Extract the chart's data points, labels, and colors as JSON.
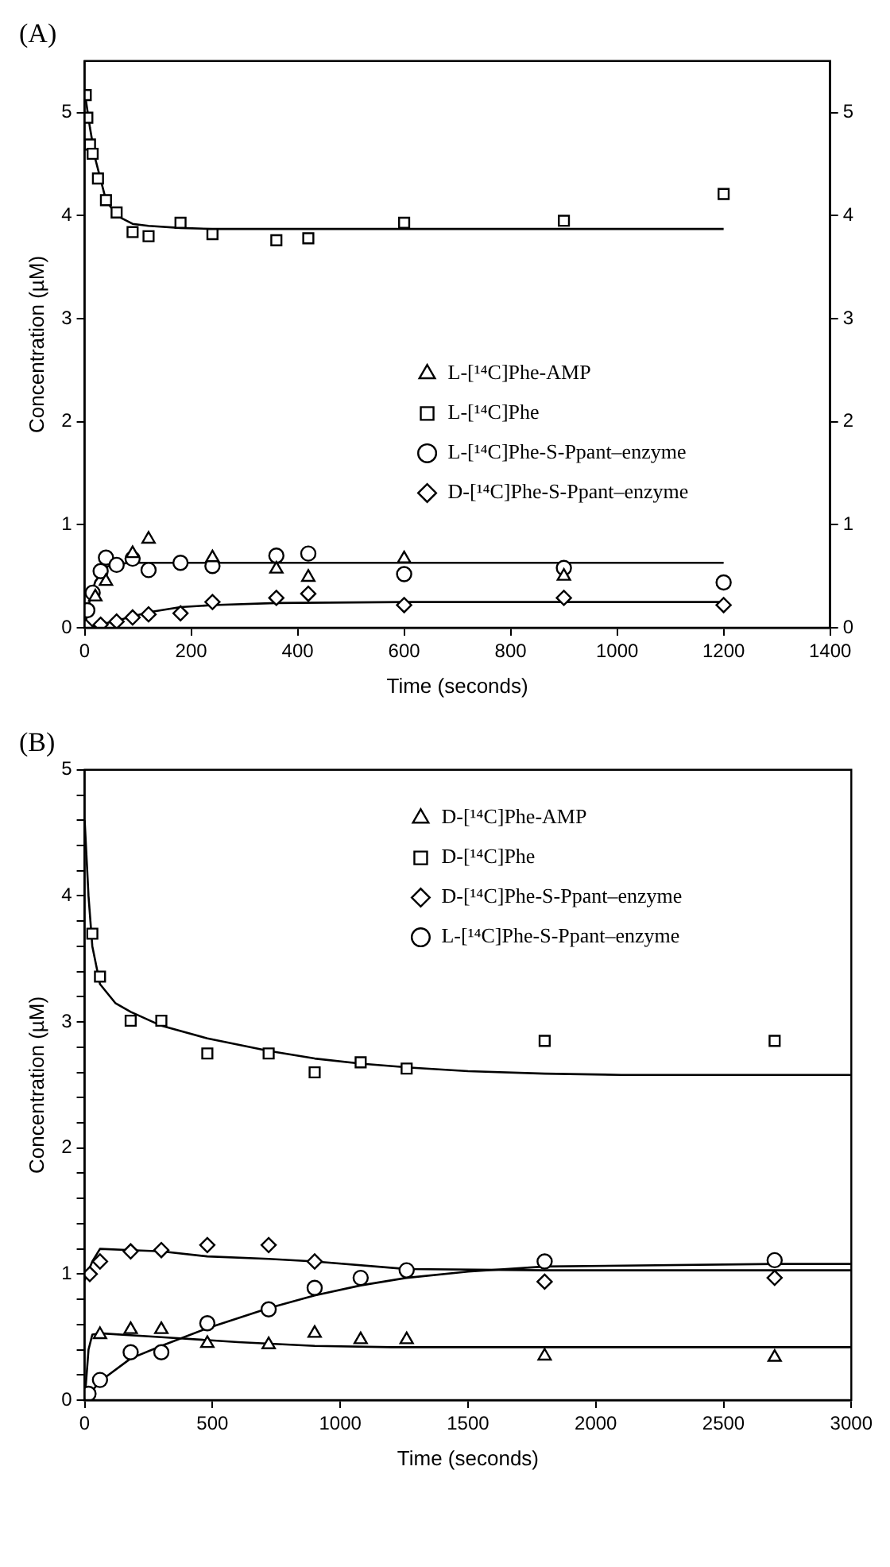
{
  "chart_data": [
    {
      "type": "scatter",
      "title": "(A)",
      "xlabel": "Time (seconds)",
      "ylabel": "Concentration (µM)",
      "xlim": [
        0,
        1400
      ],
      "xticks": [
        0,
        200,
        400,
        600,
        800,
        1000,
        1200,
        1400
      ],
      "ylim": [
        0,
        5.5
      ],
      "yticks": [
        0,
        1,
        2,
        3,
        4,
        5
      ],
      "y2lim": [
        0,
        5.5
      ],
      "y2ticks": [
        0,
        1,
        2,
        3,
        4,
        5
      ],
      "grid": false,
      "legend": "center right",
      "series": [
        {
          "name": "L-[¹⁴C]Phe-AMP",
          "color": "#000000",
          "marker": "triangle",
          "x": [
            20,
            40,
            90,
            120,
            240,
            360,
            420,
            600,
            900
          ],
          "values": [
            0.3,
            0.45,
            0.72,
            0.86,
            0.68,
            0.57,
            0.49,
            0.67,
            0.5
          ]
        },
        {
          "name": "L-[¹⁴C]Phe",
          "color": "#000000",
          "marker": "square",
          "x": [
            2,
            5,
            10,
            15,
            25,
            40,
            60,
            90,
            120,
            180,
            240,
            360,
            420,
            600,
            900,
            1200
          ],
          "values": [
            5.17,
            4.95,
            4.69,
            4.6,
            4.36,
            4.15,
            4.03,
            3.84,
            3.8,
            3.93,
            3.82,
            3.76,
            3.78,
            3.93,
            3.95,
            4.21
          ]
        },
        {
          "name": "L-[¹⁴C]Phe-S-Ppant–enzyme",
          "color": "#000000",
          "marker": "circle",
          "x": [
            5,
            15,
            30,
            40,
            60,
            90,
            120,
            180,
            240,
            360,
            420,
            600,
            900,
            1200
          ],
          "values": [
            0.17,
            0.34,
            0.55,
            0.68,
            0.61,
            0.67,
            0.56,
            0.63,
            0.6,
            0.7,
            0.72,
            0.52,
            0.58,
            0.44
          ]
        },
        {
          "name": "D-[¹⁴C]Phe-S-Ppant–enzyme",
          "color": "#000000",
          "marker": "diamond",
          "x": [
            2,
            30,
            60,
            90,
            120,
            180,
            240,
            360,
            420,
            600,
            900,
            1200
          ],
          "values": [
            0.01,
            0.03,
            0.06,
            0.1,
            0.13,
            0.14,
            0.25,
            0.29,
            0.33,
            0.22,
            0.29,
            0.22
          ]
        },
        {
          "type": "line",
          "color": "#000000",
          "marker": "none",
          "x": [
            0,
            10,
            20,
            40,
            60,
            90,
            120,
            180,
            240,
            360,
            600,
            900,
            1200
          ],
          "values": [
            5.2,
            4.85,
            4.55,
            4.15,
            4.0,
            3.92,
            3.9,
            3.88,
            3.87,
            3.87,
            3.87,
            3.87,
            3.87
          ]
        },
        {
          "type": "line",
          "color": "#000000",
          "marker": "none",
          "x": [
            0,
            10,
            20,
            40,
            60,
            90,
            120,
            240,
            600,
            1200
          ],
          "values": [
            0,
            0.28,
            0.45,
            0.59,
            0.62,
            0.63,
            0.63,
            0.63,
            0.63,
            0.63
          ]
        },
        {
          "type": "line",
          "color": "#000000",
          "marker": "none",
          "x": [
            0,
            30,
            60,
            90,
            120,
            180,
            240,
            360,
            600,
            1200
          ],
          "values": [
            0,
            0.03,
            0.07,
            0.11,
            0.15,
            0.2,
            0.22,
            0.24,
            0.25,
            0.25
          ]
        }
      ]
    },
    {
      "type": "scatter",
      "title": "(B)",
      "xlabel": "Time (seconds)",
      "ylabel": "Concentration (µM)",
      "xlim": [
        0,
        3000
      ],
      "xticks": [
        0,
        500,
        1000,
        1500,
        2000,
        2500,
        3000
      ],
      "ylim": [
        0,
        5
      ],
      "yticks": [
        0,
        {
          "value": 0.2,
          "label": null
        },
        {
          "value": 0.4,
          "label": null
        },
        {
          "value": 0.6,
          "label": null
        },
        {
          "value": 0.8,
          "label": null
        },
        1,
        {
          "value": 1.2,
          "label": null
        },
        {
          "value": 1.4,
          "label": null
        },
        {
          "value": 1.6,
          "label": null
        },
        {
          "value": 1.8,
          "label": null
        },
        2,
        {
          "value": 2.2,
          "label": null
        },
        {
          "value": 2.4,
          "label": null
        },
        {
          "value": 2.6,
          "label": null
        },
        {
          "value": 2.8,
          "label": null
        },
        3,
        {
          "value": 3.2,
          "label": null
        },
        {
          "value": 3.4,
          "label": null
        },
        {
          "value": 3.6,
          "label": null
        },
        {
          "value": 3.8,
          "label": null
        },
        4,
        {
          "value": 4.2,
          "label": null
        },
        {
          "value": 4.4,
          "label": null
        },
        {
          "value": 4.6,
          "label": null
        },
        {
          "value": 4.8,
          "label": null
        },
        5
      ],
      "grid": false,
      "legend": "top right",
      "series": [
        {
          "name": "D-[¹⁴C]Phe-AMP",
          "color": "#000000",
          "marker": "triangle",
          "x": [
            60,
            180,
            300,
            480,
            720,
            900,
            1080,
            1260,
            1800,
            2700
          ],
          "values": [
            0.52,
            0.56,
            0.56,
            0.45,
            0.44,
            0.53,
            0.48,
            0.48,
            0.35,
            0.34
          ]
        },
        {
          "name": "D-[¹⁴C]Phe",
          "color": "#000000",
          "marker": "square",
          "x": [
            30,
            60,
            180,
            300,
            480,
            720,
            900,
            1080,
            1260,
            1800,
            2700
          ],
          "values": [
            3.7,
            3.36,
            3.01,
            3.01,
            2.75,
            2.75,
            2.6,
            2.68,
            2.63,
            2.85,
            2.85
          ]
        },
        {
          "name": "D-[¹⁴C]Phe-S-Ppant–enzyme",
          "color": "#000000",
          "marker": "diamond",
          "x": [
            20,
            60,
            180,
            300,
            480,
            720,
            900,
            1800,
            2700
          ],
          "values": [
            1.0,
            1.1,
            1.18,
            1.19,
            1.23,
            1.23,
            1.1,
            0.94,
            0.97
          ]
        },
        {
          "name": "L-[¹⁴C]Phe-S-Ppant–enzyme",
          "color": "#000000",
          "marker": "circle",
          "x": [
            15,
            60,
            180,
            300,
            480,
            720,
            900,
            1080,
            1260,
            1800,
            2700
          ],
          "values": [
            0.05,
            0.16,
            0.38,
            0.38,
            0.61,
            0.72,
            0.89,
            0.97,
            1.03,
            1.1,
            1.11
          ]
        },
        {
          "type": "line",
          "color": "#000000",
          "marker": "none",
          "x": [
            0,
            15,
            30,
            60,
            300,
            600,
            900,
            1200,
            1800,
            3000
          ],
          "values": [
            0,
            0.4,
            0.52,
            0.53,
            0.5,
            0.46,
            0.43,
            0.42,
            0.42,
            0.42
          ]
        },
        {
          "type": "line",
          "color": "#000000",
          "marker": "none",
          "x": [
            0,
            15,
            30,
            60,
            120,
            180,
            300,
            480,
            720,
            900,
            1080,
            1260,
            1500,
            1800,
            2100,
            2700,
            3000
          ],
          "values": [
            4.6,
            4.0,
            3.6,
            3.3,
            3.15,
            3.08,
            2.97,
            2.87,
            2.77,
            2.71,
            2.67,
            2.64,
            2.61,
            2.59,
            2.58,
            2.58,
            2.58
          ]
        },
        {
          "type": "line",
          "color": "#000000",
          "marker": "none",
          "x": [
            0,
            10,
            30,
            60,
            180,
            300,
            480,
            720,
            900,
            1260,
            1800,
            3000
          ],
          "values": [
            0.95,
            1.0,
            1.1,
            1.2,
            1.19,
            1.18,
            1.14,
            1.12,
            1.1,
            1.04,
            1.03,
            1.03
          ]
        },
        {
          "type": "line",
          "color": "#000000",
          "marker": "none",
          "x": [
            0,
            60,
            180,
            300,
            480,
            720,
            900,
            1080,
            1260,
            1500,
            1800,
            2700,
            3000
          ],
          "values": [
            0,
            0.15,
            0.33,
            0.43,
            0.57,
            0.73,
            0.83,
            0.91,
            0.97,
            1.02,
            1.06,
            1.08,
            1.08
          ]
        }
      ]
    }
  ]
}
